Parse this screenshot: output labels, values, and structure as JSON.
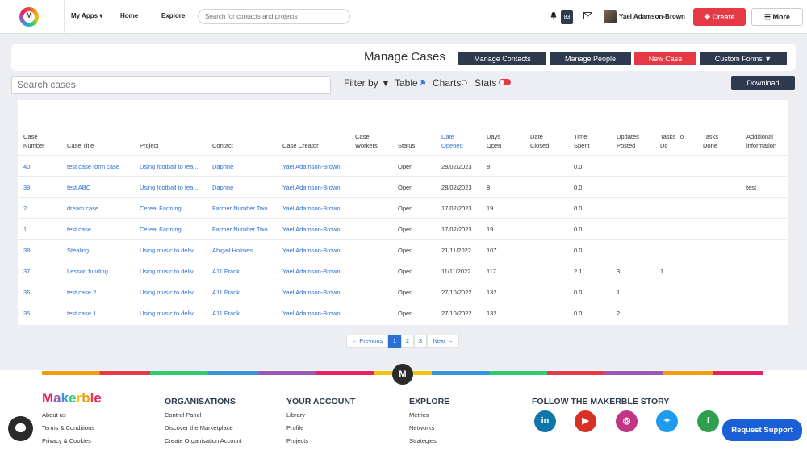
{
  "header": {
    "nav_myapps": "My Apps ▾",
    "nav_home": "Home",
    "nav_explore": "Explore",
    "search_placeholder": "Search for contacts and projects",
    "notification_count": "83",
    "user_name": "Yael Adamson-Brown",
    "create_label": "✚ Create",
    "more_label": "☰ More"
  },
  "manage": {
    "title": "Manage Cases",
    "buttons": [
      "Manage Contacts",
      "Manage People",
      "New Case",
      "Custom Forms ▼"
    ]
  },
  "toolbar": {
    "search_placeholder": "Search cases",
    "filter_label": "Filter by ▼",
    "view_table": "Table",
    "view_charts": "Charts",
    "stats": "Stats",
    "download": "Download"
  },
  "table": {
    "headers": [
      [
        "Case",
        "Number"
      ],
      [
        "Case Title"
      ],
      [
        "Project"
      ],
      [
        "Contact"
      ],
      [
        "Case Creator"
      ],
      [
        "Case",
        "Workers"
      ],
      [
        "Status"
      ],
      [
        "Date",
        "Opened"
      ],
      [
        "Days",
        "Open"
      ],
      [
        "Date",
        "Closed"
      ],
      [
        "Time",
        "Spent"
      ],
      [
        "Updates",
        "Posted"
      ],
      [
        "Tasks To",
        "Do"
      ],
      [
        "Tasks",
        "Done"
      ],
      [
        "Additional",
        "information"
      ]
    ],
    "rows": [
      {
        "num": "40",
        "title": "test case form case",
        "project": "Using football to tea...",
        "contact": "Daphne",
        "creator": "Yael Adamson-Brown",
        "status": "Open",
        "opened": "28/02/2023",
        "days": "8",
        "time": "0.0",
        "updates": "",
        "tasks_todo": "",
        "info": ""
      },
      {
        "num": "39",
        "title": "test ABC",
        "project": "Using football to tea...",
        "contact": "Daphne",
        "creator": "Yael Adamson-Brown",
        "status": "Open",
        "opened": "28/02/2023",
        "days": "8",
        "time": "0.0",
        "updates": "",
        "tasks_todo": "",
        "info": "test"
      },
      {
        "num": "2",
        "title": "dream case",
        "project": "Cereal Farming",
        "contact": "Farmer Number Two",
        "creator": "Yael Adamson-Brown",
        "status": "Open",
        "opened": "17/02/2023",
        "days": "19",
        "time": "0.0",
        "updates": "",
        "tasks_todo": "",
        "info": ""
      },
      {
        "num": "1",
        "title": "test case",
        "project": "Cereal Farming",
        "contact": "Farmer Number Two",
        "creator": "Yael Adamson-Brown",
        "status": "Open",
        "opened": "17/02/2023",
        "days": "19",
        "time": "0.0",
        "updates": "",
        "tasks_todo": "",
        "info": ""
      },
      {
        "num": "38",
        "title": "Stealing",
        "project": "Using music to deliv...",
        "contact": "Abigail Holmes",
        "creator": "Yael Adamson-Brown",
        "status": "Open",
        "opened": "21/11/2022",
        "days": "107",
        "time": "0.0",
        "updates": "",
        "tasks_todo": "",
        "info": ""
      },
      {
        "num": "37",
        "title": "Lesson funding",
        "project": "Using music to deliv...",
        "contact": "A11 Frank",
        "creator": "Yael Adamson-Brown",
        "status": "Open",
        "opened": "11/11/2022",
        "days": "117",
        "time": "2.1",
        "updates": "3",
        "tasks_todo": "1",
        "info": ""
      },
      {
        "num": "36",
        "title": "test case 2",
        "project": "Using music to deliv...",
        "contact": "A11 Frank",
        "creator": "Yael Adamson-Brown",
        "status": "Open",
        "opened": "27/10/2022",
        "days": "132",
        "time": "0.0",
        "updates": "1",
        "tasks_todo": "",
        "info": ""
      },
      {
        "num": "35",
        "title": "test case 1",
        "project": "Using music to deliv...",
        "contact": "A11 Frank",
        "creator": "Yael Adamson-Brown",
        "status": "Open",
        "opened": "27/10/2022",
        "days": "132",
        "time": "0.0",
        "updates": "2",
        "tasks_todo": "",
        "info": ""
      }
    ]
  },
  "pagination": {
    "prev": "← Previous",
    "pages": [
      "1",
      "2",
      "3"
    ],
    "next": "Next →",
    "current": "1"
  },
  "footer": {
    "badge": "M",
    "brand_letters": [
      "M",
      "a",
      "k",
      "e",
      "r",
      "b",
      "l",
      "e"
    ],
    "brand_colors": [
      "#e91e63",
      "#9b59b6",
      "#3498db",
      "#2ecc71",
      "#f1c40f",
      "#f39c12",
      "#e63946",
      "#e91e63"
    ],
    "col1_links": [
      "About us",
      "Terms & Conditions",
      "Privacy & Cookies"
    ],
    "organisations_heading": "ORGANISATIONS",
    "organisations_links": [
      "Control Panel",
      "Discover the Marketplace",
      "Create Organisation Account"
    ],
    "account_heading": "YOUR ACCOUNT",
    "account_links": [
      "Library",
      "Profile",
      "Projects"
    ],
    "explore_heading": "EXPLORE",
    "explore_links": [
      "Metrics",
      "Networks",
      "Strategies"
    ],
    "follow_heading": "FOLLOW THE MAKERBLE STORY",
    "social": [
      {
        "name": "linkedin-icon",
        "glyph": "in",
        "color": "#0e76a8"
      },
      {
        "name": "youtube-icon",
        "glyph": "▶",
        "color": "#d93025"
      },
      {
        "name": "instagram-icon",
        "glyph": "◎",
        "color": "#c13584"
      },
      {
        "name": "twitter-icon",
        "glyph": "✦",
        "color": "#1d9bf0"
      },
      {
        "name": "facebook-icon",
        "glyph": "f",
        "color": "#2e9e4f"
      }
    ],
    "support": "Request Support"
  }
}
